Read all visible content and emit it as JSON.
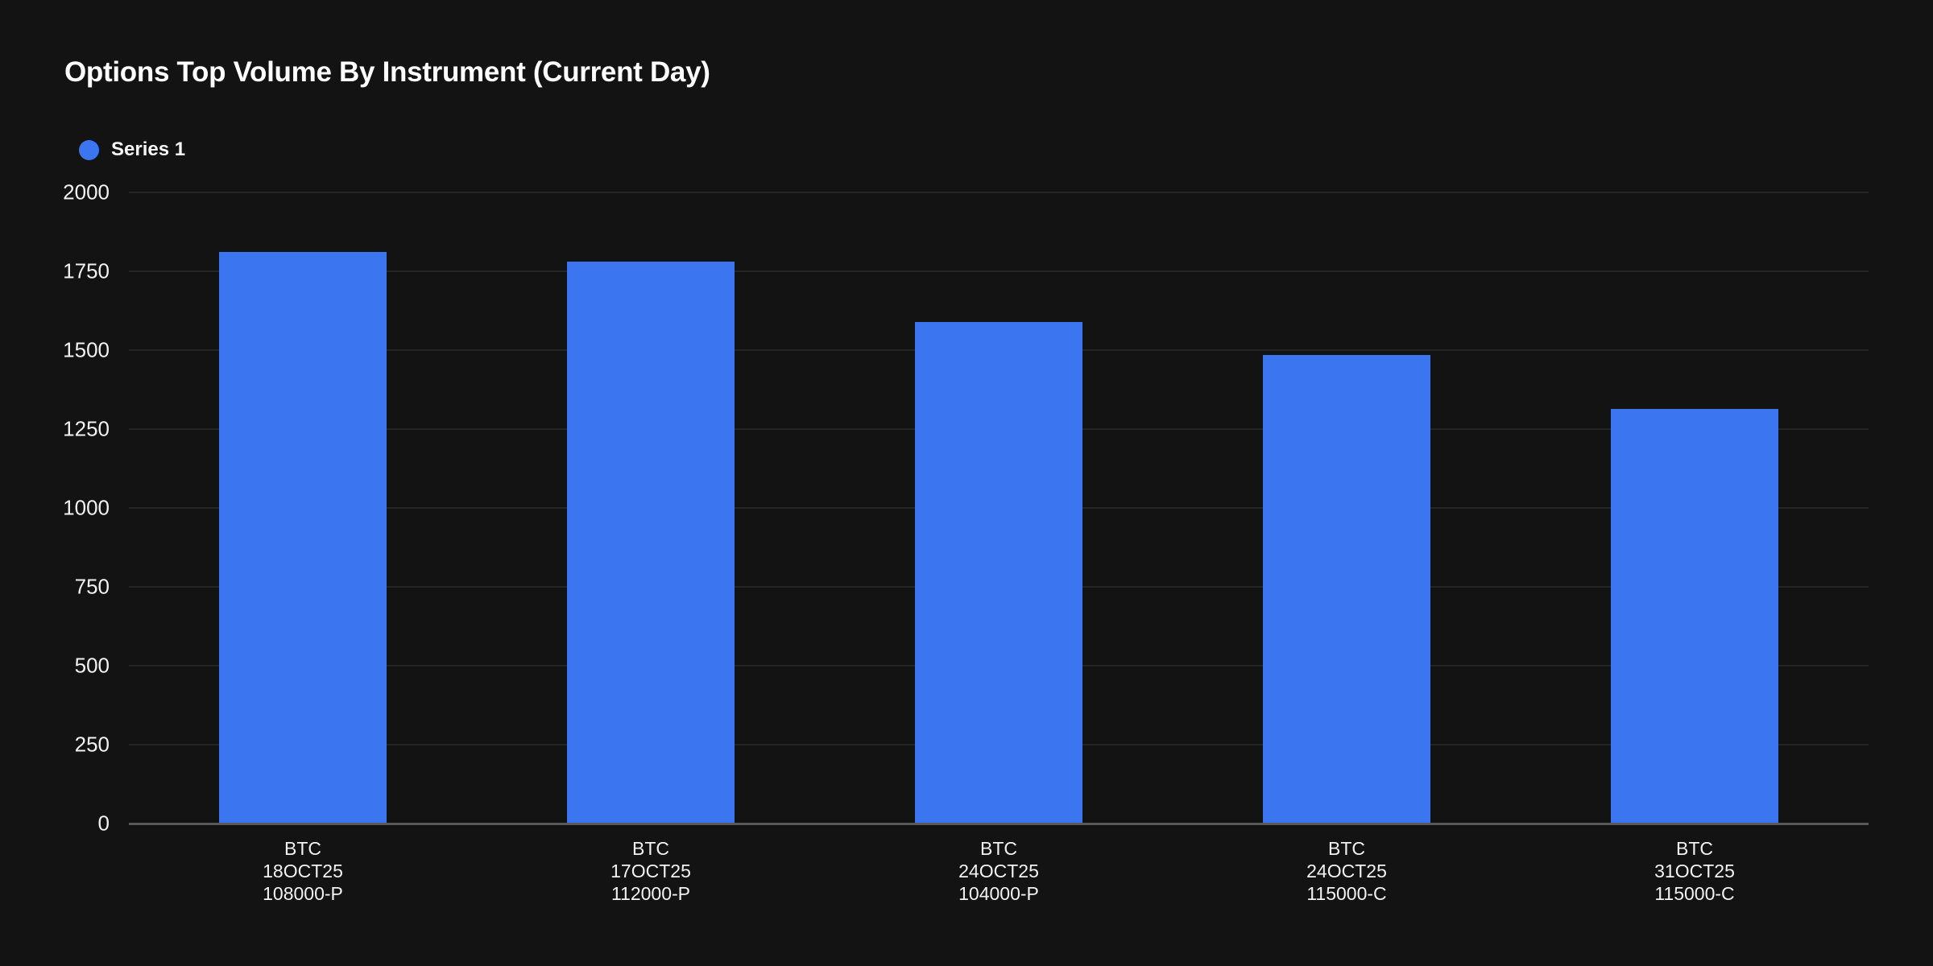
{
  "colors": {
    "background": "#131313",
    "bar": "#3b75f0",
    "gridline": "#252525",
    "axis_line": "#585858",
    "title_text": "#ffffff",
    "tick_text": "#f2f2f2"
  },
  "chart_data": {
    "type": "bar",
    "title": "Options Top Volume By Instrument (Current Day)",
    "legend": [
      {
        "name": "Series 1",
        "color": "#3b75f0"
      }
    ],
    "legend_position": "top-left",
    "categories": [
      [
        "BTC",
        "18OCT25",
        "108000-P"
      ],
      [
        "BTC",
        "17OCT25",
        "112000-P"
      ],
      [
        "BTC",
        "24OCT25",
        "104000-P"
      ],
      [
        "BTC",
        "24OCT25",
        "115000-C"
      ],
      [
        "BTC",
        "31OCT25",
        "115000-C"
      ]
    ],
    "values": [
      1810,
      1780,
      1590,
      1485,
      1315
    ],
    "xlabel": "",
    "ylabel": "",
    "ylim": [
      0,
      2000
    ],
    "yticks": [
      0,
      250,
      500,
      750,
      1000,
      1250,
      1500,
      1750,
      2000
    ],
    "grid": true
  }
}
